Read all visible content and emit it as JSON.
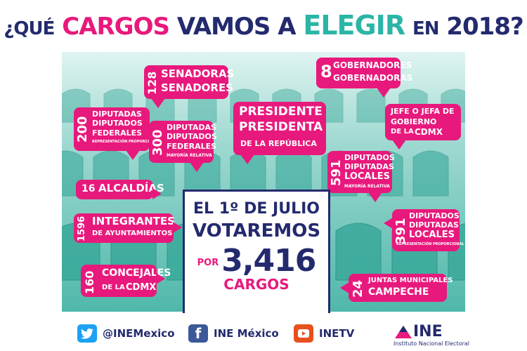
{
  "title": {
    "part1": "¿QUÉ",
    "part2": "CARGOS",
    "part3": "VAMOS A",
    "part4": "ELEGIR",
    "part5": "EN",
    "part6": "2018?"
  },
  "bubbles": {
    "senadores": {
      "num": "128",
      "l1": "SENADORAS",
      "l2": "SENADORES"
    },
    "gobernadores": {
      "num": "8",
      "l1": "GOBERNADORES",
      "l2": "GOBERNADORAS"
    },
    "presidente": {
      "l1": "PRESIDENTE",
      "l2": "PRESIDENTA",
      "l3": "DE LA REPÚBLICA"
    },
    "jefe": {
      "l1": "JEFE O JEFA DE",
      "l2": "GOBIERNO",
      "l3a": "DE LA",
      "l3b": "CDMX"
    },
    "dip_fed_rp": {
      "num": "200",
      "l1": "DIPUTADAS",
      "l2": "DIPUTADOS",
      "l3": "FEDERALES",
      "note": "REPRESENTACIÓN PROPORCIONAL"
    },
    "dip_fed_mr": {
      "num": "300",
      "l1": "DIPUTADAS",
      "l2": "DIPUTADOS",
      "l3": "FEDERALES",
      "note": "MAYORÍA RELATIVA"
    },
    "dip_loc_mr": {
      "num": "591",
      "l1": "DIPUTADOS",
      "l2": "DIPUTADAS",
      "l3": "LOCALES",
      "note": "MAYORÍA RELATIVA"
    },
    "alcaldias": {
      "num": "16",
      "l1": "ALCALDÍAS"
    },
    "ayuntamientos": {
      "num": "1596",
      "l1": "INTEGRANTES",
      "l2": "DE AYUNTAMIENTOS"
    },
    "dip_loc_rp": {
      "num": "391",
      "l1": "DIPUTADOS",
      "l2": "DIPUTADAS",
      "l3": "LOCALES",
      "note": "REPRESENTACIÓN PROPORCIONAL"
    },
    "concejales": {
      "num": "160",
      "l1": "CONCEJALES",
      "l2a": "DE LA",
      "l2b": "CDMX"
    },
    "juntas": {
      "num": "24",
      "l1": "JUNTAS MUNICIPALES",
      "l2": "CAMPECHE"
    }
  },
  "center": {
    "line1": "EL 1º DE JULIO",
    "line2": "VOTAREMOS",
    "por": "POR",
    "total": "3,416",
    "cargos": "CARGOS"
  },
  "footer": {
    "twitter": "@INEMexico",
    "facebook": "INE México",
    "youtube": "INETV",
    "logo": "INE",
    "logo_sub": "Instituto Nacional Electoral"
  },
  "icons": [
    "twitter-icon",
    "facebook-icon",
    "youtube-icon",
    "ine-logo-icon"
  ],
  "colors": {
    "pink": "#e8197c",
    "navy": "#232a6e",
    "teal": "#2bb5a6"
  }
}
